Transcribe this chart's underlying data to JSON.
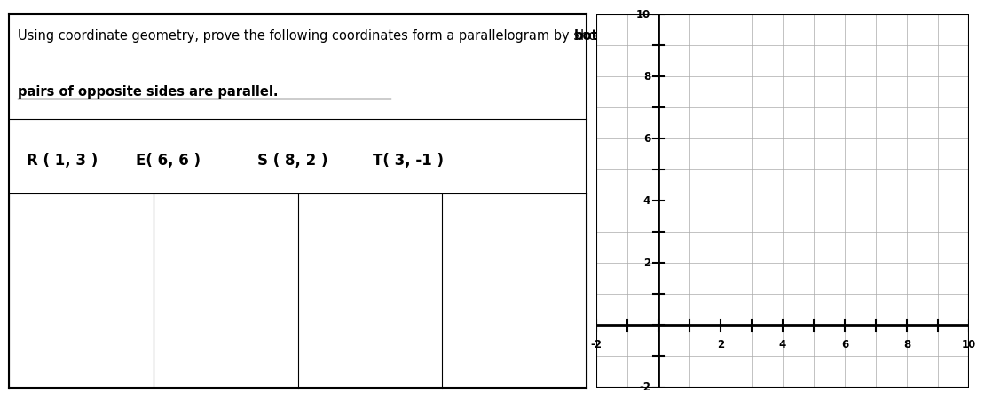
{
  "title_line1": "Using coordinate geometry, prove the following coordinates form a parallelogram by showing that ",
  "title_bold_part": "both",
  "title_line2": "pairs of opposite sides are parallel.",
  "points": [
    {
      "label": "R ( 1, 3 )"
    },
    {
      "label": "E( 6, 6 )"
    },
    {
      "label": "S ( 8, 2 )"
    },
    {
      "label": "T( 3, -1 )"
    }
  ],
  "grid_xlim": [
    -2,
    10
  ],
  "grid_ylim": [
    -2,
    10
  ],
  "grid_xticks": [
    -2,
    2,
    4,
    6,
    8,
    10
  ],
  "grid_yticks": [
    -2,
    2,
    4,
    6,
    8,
    10
  ],
  "background_color": "#ffffff",
  "grid_color": "#aaaaaa",
  "axis_color": "#000000",
  "text_color": "#000000",
  "font_size_title": 10.5,
  "font_size_points": 12,
  "font_size_ticks": 8.5
}
